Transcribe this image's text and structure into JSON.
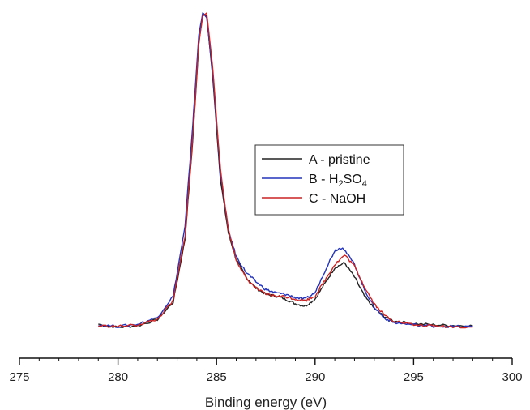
{
  "chart_data": {
    "type": "line",
    "title": "",
    "xlabel": "Binding energy (eV)",
    "ylabel": "",
    "xlim": [
      275,
      300
    ],
    "ylim": [
      0,
      1.05
    ],
    "x_ticks": [
      "275",
      "280",
      "285",
      "290",
      "295",
      "300"
    ],
    "grid": false,
    "y_axis_visible": false,
    "legend_position": "center-right",
    "series": [
      {
        "name": "A - pristine",
        "color": "#222222",
        "points": [
          [
            279.0,
            0.01
          ],
          [
            280.0,
            0.0
          ],
          [
            281.0,
            0.005
          ],
          [
            282.0,
            0.025
          ],
          [
            282.8,
            0.08
          ],
          [
            283.4,
            0.28
          ],
          [
            283.8,
            0.6
          ],
          [
            284.1,
            0.9
          ],
          [
            284.3,
            1.0
          ],
          [
            284.5,
            0.99
          ],
          [
            284.8,
            0.8
          ],
          [
            285.2,
            0.47
          ],
          [
            285.6,
            0.3
          ],
          [
            286.0,
            0.215
          ],
          [
            286.5,
            0.16
          ],
          [
            287.0,
            0.125
          ],
          [
            287.5,
            0.105
          ],
          [
            288.0,
            0.1
          ],
          [
            288.5,
            0.09
          ],
          [
            289.0,
            0.075
          ],
          [
            289.5,
            0.068
          ],
          [
            290.0,
            0.09
          ],
          [
            290.5,
            0.14
          ],
          [
            291.0,
            0.19
          ],
          [
            291.5,
            0.205
          ],
          [
            292.0,
            0.16
          ],
          [
            292.5,
            0.1
          ],
          [
            293.0,
            0.06
          ],
          [
            293.5,
            0.035
          ],
          [
            294.0,
            0.02
          ],
          [
            295.0,
            0.012
          ],
          [
            296.0,
            0.008
          ],
          [
            297.0,
            0.006
          ],
          [
            298.0,
            0.005
          ]
        ]
      },
      {
        "name": "B - H2SO4",
        "color": "#2233bb",
        "points": [
          [
            279.0,
            0.008
          ],
          [
            280.0,
            0.003
          ],
          [
            281.0,
            0.01
          ],
          [
            282.0,
            0.032
          ],
          [
            282.8,
            0.1
          ],
          [
            283.4,
            0.32
          ],
          [
            283.8,
            0.65
          ],
          [
            284.1,
            0.93
          ],
          [
            284.3,
            1.0
          ],
          [
            284.5,
            0.985
          ],
          [
            284.8,
            0.81
          ],
          [
            285.2,
            0.49
          ],
          [
            285.6,
            0.31
          ],
          [
            286.0,
            0.225
          ],
          [
            286.5,
            0.175
          ],
          [
            287.0,
            0.145
          ],
          [
            287.5,
            0.12
          ],
          [
            288.0,
            0.11
          ],
          [
            288.5,
            0.105
          ],
          [
            289.0,
            0.095
          ],
          [
            289.5,
            0.09
          ],
          [
            290.0,
            0.11
          ],
          [
            290.5,
            0.18
          ],
          [
            291.0,
            0.245
          ],
          [
            291.4,
            0.255
          ],
          [
            292.0,
            0.2
          ],
          [
            292.5,
            0.12
          ],
          [
            293.0,
            0.065
          ],
          [
            293.5,
            0.03
          ],
          [
            294.0,
            0.015
          ],
          [
            295.0,
            0.008
          ],
          [
            296.0,
            0.004
          ],
          [
            297.0,
            0.003
          ],
          [
            298.0,
            0.002
          ]
        ]
      },
      {
        "name": "C - NaOH",
        "color": "#cc2222",
        "points": [
          [
            279.0,
            0.005
          ],
          [
            280.0,
            0.003
          ],
          [
            281.0,
            0.008
          ],
          [
            282.0,
            0.025
          ],
          [
            282.8,
            0.085
          ],
          [
            283.4,
            0.29
          ],
          [
            283.8,
            0.61
          ],
          [
            284.1,
            0.905
          ],
          [
            284.3,
            0.99
          ],
          [
            284.5,
            1.0
          ],
          [
            284.8,
            0.83
          ],
          [
            285.2,
            0.5
          ],
          [
            285.6,
            0.31
          ],
          [
            286.0,
            0.215
          ],
          [
            286.5,
            0.155
          ],
          [
            287.0,
            0.125
          ],
          [
            287.5,
            0.105
          ],
          [
            288.0,
            0.1
          ],
          [
            288.5,
            0.098
          ],
          [
            289.0,
            0.09
          ],
          [
            289.5,
            0.085
          ],
          [
            290.0,
            0.1
          ],
          [
            290.5,
            0.15
          ],
          [
            291.0,
            0.2
          ],
          [
            291.5,
            0.23
          ],
          [
            292.0,
            0.195
          ],
          [
            292.5,
            0.13
          ],
          [
            293.0,
            0.075
          ],
          [
            293.5,
            0.04
          ],
          [
            294.0,
            0.02
          ],
          [
            295.0,
            0.008
          ],
          [
            296.0,
            0.004
          ],
          [
            297.0,
            0.002
          ],
          [
            298.0,
            0.001
          ]
        ]
      }
    ]
  }
}
